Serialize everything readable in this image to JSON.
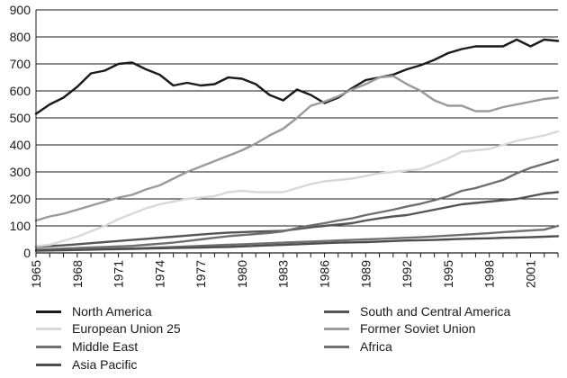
{
  "chart_data": {
    "type": "line",
    "title": "",
    "xlabel": "",
    "ylabel": "",
    "xlim": [
      1965,
      2003
    ],
    "ylim": [
      0,
      900
    ],
    "grid": true,
    "x_ticks": [
      "1965",
      "1968",
      "1971",
      "1974",
      "1977",
      "1980",
      "1983",
      "1986",
      "1989",
      "1992",
      "1995",
      "1998",
      "2001"
    ],
    "y_ticks": [
      "0",
      "100",
      "200",
      "300",
      "400",
      "500",
      "600",
      "700",
      "800",
      "900"
    ],
    "x": [
      1965,
      1966,
      1967,
      1968,
      1969,
      1970,
      1971,
      1972,
      1973,
      1974,
      1975,
      1976,
      1977,
      1978,
      1979,
      1980,
      1981,
      1982,
      1983,
      1984,
      1985,
      1986,
      1987,
      1988,
      1989,
      1990,
      1991,
      1992,
      1993,
      1994,
      1995,
      1996,
      1997,
      1998,
      1999,
      2000,
      2001,
      2002,
      2003
    ],
    "legend_position": "bottom",
    "series": [
      {
        "name": "North America",
        "color": "#1a1a1a",
        "values": [
          515,
          550,
          575,
          615,
          665,
          675,
          700,
          705,
          680,
          660,
          620,
          630,
          620,
          625,
          650,
          645,
          625,
          585,
          565,
          605,
          585,
          555,
          575,
          610,
          640,
          650,
          660,
          680,
          695,
          715,
          740,
          755,
          765,
          765,
          765,
          790,
          765,
          790,
          785
        ]
      },
      {
        "name": "South and Central America",
        "color": "#555555",
        "values": [
          22,
          25,
          28,
          32,
          36,
          40,
          44,
          48,
          52,
          56,
          60,
          64,
          68,
          72,
          75,
          77,
          79,
          80,
          82,
          88,
          95,
          100,
          105,
          110,
          120,
          128,
          135,
          140,
          150,
          160,
          170,
          180,
          185,
          190,
          195,
          200,
          210,
          220,
          225
        ]
      },
      {
        "name": "European Union 25",
        "color": "#d8d8d8",
        "values": [
          25,
          30,
          45,
          60,
          80,
          100,
          125,
          145,
          165,
          180,
          190,
          200,
          205,
          210,
          225,
          230,
          225,
          225,
          225,
          240,
          255,
          265,
          270,
          275,
          285,
          295,
          300,
          305,
          310,
          330,
          350,
          375,
          380,
          385,
          400,
          415,
          425,
          435,
          450
        ]
      },
      {
        "name": "Former Soviet Union",
        "color": "#9a9a9a",
        "values": [
          120,
          135,
          145,
          160,
          175,
          190,
          205,
          215,
          235,
          250,
          275,
          300,
          320,
          340,
          360,
          380,
          405,
          435,
          460,
          500,
          545,
          560,
          580,
          605,
          625,
          650,
          655,
          625,
          600,
          565,
          545,
          545,
          525,
          525,
          540,
          550,
          560,
          570,
          575
        ]
      },
      {
        "name": "Middle East",
        "color": "#6f6f6f",
        "values": [
          12,
          14,
          16,
          18,
          20,
          22,
          24,
          26,
          30,
          34,
          38,
          44,
          50,
          56,
          62,
          66,
          70,
          74,
          80,
          92,
          102,
          110,
          120,
          128,
          140,
          150,
          160,
          172,
          182,
          195,
          210,
          230,
          240,
          255,
          270,
          295,
          315,
          330,
          345
        ]
      },
      {
        "name": "Africa",
        "color": "#707070",
        "values": [
          10,
          11,
          12,
          13,
          14,
          15,
          16,
          17,
          18,
          20,
          22,
          24,
          26,
          28,
          30,
          32,
          34,
          36,
          38,
          40,
          42,
          44,
          46,
          48,
          50,
          52,
          54,
          56,
          58,
          61,
          64,
          67,
          70,
          73,
          77,
          80,
          83,
          86,
          100
        ]
      },
      {
        "name": "Asia Pacific",
        "color": "#4d4d4d",
        "values": [
          8,
          9,
          10,
          11,
          12,
          13,
          14,
          15,
          16,
          17,
          18,
          19,
          20,
          21,
          22,
          24,
          26,
          28,
          30,
          32,
          34,
          36,
          38,
          39,
          40,
          42,
          44,
          46,
          47,
          48,
          50,
          52,
          53,
          54,
          56,
          57,
          58,
          60,
          62
        ]
      }
    ]
  }
}
